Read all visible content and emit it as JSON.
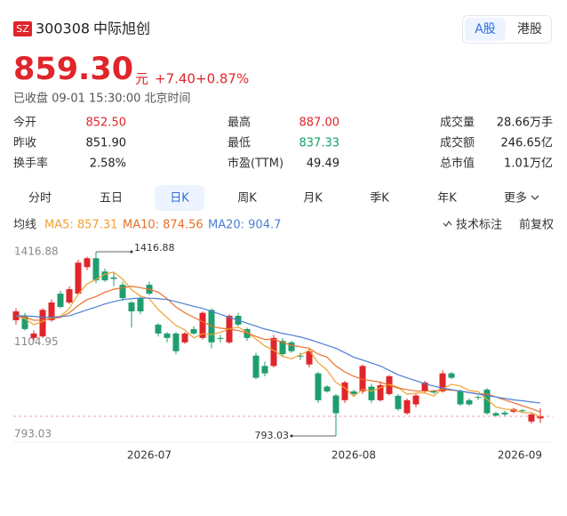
{
  "header": {
    "exchange": "SZ",
    "code": "300308",
    "name": "中际旭创",
    "tabs": [
      "A股",
      "港股"
    ],
    "selected_tab": 0
  },
  "quote": {
    "price": "859.30",
    "unit": "元",
    "change": "+7.40",
    "change_pct": "+0.87%",
    "status": "已收盘 09-01 15:30:00 北京时间",
    "stats": [
      {
        "label": "今开",
        "value": "852.50",
        "color": "#e0252b"
      },
      {
        "label": "最高",
        "value": "887.00",
        "color": "#e0252b"
      },
      {
        "label": "成交量",
        "value": "28.66万手",
        "color": "#222222"
      },
      {
        "label": "昨收",
        "value": "851.90",
        "color": "#222222"
      },
      {
        "label": "最低",
        "value": "837.33",
        "color": "#16a06a"
      },
      {
        "label": "成交额",
        "value": "246.65亿",
        "color": "#222222"
      },
      {
        "label": "换手率",
        "value": "2.58%",
        "color": "#222222"
      },
      {
        "label": "市盈(TTM)",
        "value": "49.49",
        "color": "#222222"
      },
      {
        "label": "总市值",
        "value": "1.01万亿",
        "color": "#222222"
      }
    ]
  },
  "periods": [
    "分时",
    "五日",
    "日K",
    "周K",
    "月K",
    "季K",
    "年K",
    "更多"
  ],
  "selected_period": 2,
  "indicator": {
    "label": "均线",
    "tools": [
      "技术标注",
      "前复权"
    ]
  },
  "chart_data": {
    "type": "candlestick",
    "categories": [
      null,
      null,
      null,
      null,
      null,
      null,
      null,
      null,
      null,
      null,
      null,
      null,
      null,
      null,
      null,
      "2026-07",
      null,
      null,
      null,
      null,
      null,
      null,
      null,
      null,
      null,
      null,
      null,
      null,
      null,
      null,
      null,
      null,
      null,
      null,
      null,
      null,
      null,
      null,
      "2026-08",
      null,
      null,
      null,
      null,
      null,
      null,
      null,
      null,
      null,
      null,
      null,
      null,
      null,
      null,
      null,
      null,
      null,
      null,
      null,
      null,
      "2026-09"
    ],
    "open": [
      1185,
      1200,
      1125,
      1130,
      1185,
      1275,
      1245,
      1275,
      1365,
      1395,
      1350,
      1330,
      1305,
      1245,
      1260,
      1305,
      1170,
      1140,
      1140,
      1110,
      1155,
      1125,
      1220,
      1125,
      1110,
      1200,
      1155,
      1065,
      1030,
      1030,
      1115,
      1110,
      1065,
      1035,
      1005,
      960,
      930,
      914,
      944,
      944,
      960,
      914,
      935,
      929,
      870,
      900,
      944,
      945,
      944,
      1005,
      944,
      914,
      925,
      950,
      870,
      872,
      875,
      880,
      842,
      852.5
    ],
    "close": [
      1215,
      1155,
      1140,
      1220,
      1245,
      1230,
      1290,
      1380,
      1395,
      1320,
      1320,
      1325,
      1260,
      1215,
      1215,
      1275,
      1140,
      1125,
      1080,
      1140,
      1140,
      1210,
      1110,
      1122,
      1200,
      1170,
      1125,
      990,
      1005,
      1125,
      1070,
      1080,
      1062,
      1080,
      914,
      944,
      870,
      974,
      935,
      1030,
      914,
      965,
      995,
      884,
      914,
      930,
      974,
      940,
      1005,
      990,
      900,
      900,
      922,
      870,
      862,
      866,
      884,
      878,
      866,
      859.3
    ],
    "low": [
      1170,
      1150,
      1115,
      1125,
      1180,
      1225,
      1240,
      1270,
      1355,
      1310,
      1315,
      1300,
      1250,
      1160,
      1205,
      1270,
      1130,
      1110,
      1070,
      1105,
      1135,
      1120,
      1090,
      1110,
      1105,
      1165,
      1115,
      985,
      995,
      1025,
      1060,
      1075,
      1050,
      1025,
      905,
      940,
      793.03,
      905,
      930,
      935,
      905,
      910,
      930,
      878,
      865,
      890,
      938,
      935,
      940,
      985,
      895,
      895,
      915,
      865,
      858,
      860,
      870,
      872,
      835,
      837.33
    ],
    "high": [
      1225,
      1210,
      1150,
      1225,
      1255,
      1285,
      1300,
      1390,
      1400,
      1416.88,
      1360,
      1345,
      1315,
      1250,
      1265,
      1315,
      1175,
      1145,
      1145,
      1145,
      1165,
      1215,
      1225,
      1135,
      1205,
      1210,
      1160,
      1075,
      1045,
      1135,
      1125,
      1115,
      1075,
      1090,
      1010,
      965,
      935,
      980,
      950,
      1035,
      970,
      975,
      1000,
      935,
      920,
      935,
      980,
      950,
      1015,
      1010,
      950,
      920,
      930,
      955,
      875,
      878,
      888,
      884,
      870,
      887
    ],
    "up_color": "#e0252b",
    "down_color": "#1e9e6c",
    "series": [
      {
        "name": "MA5: 857.31",
        "color": "#f0a030",
        "values": [
          1200,
          1190,
          1170,
          1180,
          1195,
          1198,
          1225,
          1273,
          1308,
          1323,
          1341,
          1348,
          1324,
          1288,
          1267,
          1258,
          1221,
          1194,
          1167,
          1152,
          1125,
          1139,
          1136,
          1144,
          1156,
          1162,
          1145,
          1121,
          1098,
          1083,
          1063,
          1054,
          1068,
          1083,
          1041,
          1016,
          974,
          956,
          927,
          951,
          945,
          956,
          968,
          958,
          934,
          938,
          939,
          928,
          953,
          968,
          962,
          947,
          943,
          917,
          891,
          884,
          881,
          872,
          872,
          857.31
        ]
      },
      {
        "name": "MA10: 874.56",
        "color": "#e8702a",
        "values": [
          1200,
          1195,
          1185,
          1185,
          1190,
          1195,
          1210,
          1235,
          1255,
          1265,
          1280,
          1290,
          1295,
          1300,
          1295,
          1290,
          1280,
          1258,
          1230,
          1210,
          1195,
          1180,
          1165,
          1158,
          1155,
          1150,
          1142,
          1130,
          1120,
          1120,
          1110,
          1100,
          1095,
          1090,
          1070,
          1060,
          1030,
          1010,
          995,
          985,
          980,
          975,
          965,
          955,
          950,
          945,
          945,
          945,
          950,
          948,
          945,
          940,
          935,
          935,
          925,
          915,
          905,
          895,
          885,
          874.56
        ]
      },
      {
        "name": "MA20: 904.7",
        "color": "#4a7fd4",
        "values": [
          1200,
          1200,
          1198,
          1195,
          1195,
          1197,
          1200,
          1210,
          1220,
          1230,
          1240,
          1248,
          1255,
          1258,
          1260,
          1260,
          1258,
          1255,
          1248,
          1240,
          1232,
          1225,
          1215,
          1205,
          1195,
          1185,
          1175,
          1165,
          1155,
          1148,
          1140,
          1135,
          1128,
          1120,
          1110,
          1100,
          1090,
          1075,
          1060,
          1050,
          1040,
          1030,
          1015,
          1000,
          990,
          980,
          970,
          962,
          955,
          950,
          945,
          940,
          935,
          930,
          925,
          920,
          915,
          912,
          908,
          904.7
        ]
      }
    ],
    "ylim": [
      793.03,
      1416.88
    ],
    "yticks": [
      1416.88,
      1104.95,
      793.03
    ],
    "price_line_color": "#f2a0a0"
  }
}
